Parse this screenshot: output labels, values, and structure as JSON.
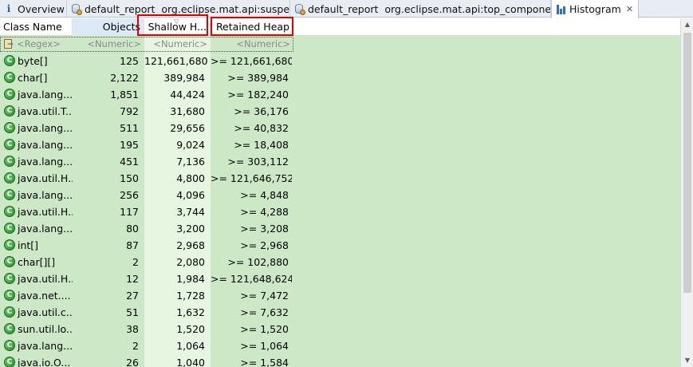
{
  "tabs": [
    {
      "label": "Overview",
      "icon": "info-icon",
      "active": false
    },
    {
      "label": "default_report  org.eclipse.mat.api:suspects",
      "icon": "report-icon",
      "active": false
    },
    {
      "label": "default_report  org.eclipse.mat.api:top_components",
      "icon": "report-icon",
      "active": false
    },
    {
      "label": "Histogram",
      "icon": "histogram-icon",
      "active": true,
      "close": "✕"
    }
  ],
  "columns": {
    "class_name": "Class Name",
    "objects": "Objects",
    "shallow": "Shallow H...",
    "retained": "Retained Heap"
  },
  "filters": {
    "class_name": "<Regex>",
    "objects": "<Numeric>",
    "shallow": "<Numeric>",
    "retained": "<Numeric>"
  },
  "class_icon_letter": "C",
  "rows": [
    {
      "name": "byte[]",
      "objects": "125",
      "shallow": "121,661,680",
      "retained": ">= 121,661,680"
    },
    {
      "name": "char[]",
      "objects": "2,122",
      "shallow": "389,984",
      "retained": ">= 389,984"
    },
    {
      "name": "java.lang....",
      "objects": "1,851",
      "shallow": "44,424",
      "retained": ">= 182,240"
    },
    {
      "name": "java.util.T...",
      "objects": "792",
      "shallow": "31,680",
      "retained": ">= 36,176"
    },
    {
      "name": "java.lang....",
      "objects": "511",
      "shallow": "29,656",
      "retained": ">= 40,832"
    },
    {
      "name": "java.lang....",
      "objects": "195",
      "shallow": "9,024",
      "retained": ">= 18,408"
    },
    {
      "name": "java.lang....",
      "objects": "451",
      "shallow": "7,136",
      "retained": ">= 303,112"
    },
    {
      "name": "java.util.H...",
      "objects": "150",
      "shallow": "4,800",
      "retained": ">= 121,646,752"
    },
    {
      "name": "java.lang....",
      "objects": "256",
      "shallow": "4,096",
      "retained": ">= 4,848"
    },
    {
      "name": "java.util.H...",
      "objects": "117",
      "shallow": "3,744",
      "retained": ">= 4,288"
    },
    {
      "name": "java.lang....",
      "objects": "80",
      "shallow": "3,200",
      "retained": ">= 3,208"
    },
    {
      "name": "int[]",
      "objects": "87",
      "shallow": "2,968",
      "retained": ">= 2,968"
    },
    {
      "name": "char[][]",
      "objects": "2",
      "shallow": "2,080",
      "retained": ">= 102,880"
    },
    {
      "name": "java.util.H...",
      "objects": "12",
      "shallow": "1,984",
      "retained": ">= 121,648,624"
    },
    {
      "name": "java.net....",
      "objects": "27",
      "shallow": "1,728",
      "retained": ">= 7,472"
    },
    {
      "name": "java.util.c...",
      "objects": "51",
      "shallow": "1,632",
      "retained": ">= 7,632"
    },
    {
      "name": "sun.util.lo...",
      "objects": "38",
      "shallow": "1,520",
      "retained": ">= 1,520"
    },
    {
      "name": "java.lang....",
      "objects": "2",
      "shallow": "1,064",
      "retained": ">= 1,064"
    },
    {
      "name": "java.io.O...",
      "objects": "26",
      "shallow": "1,040",
      "retained": ">= 1,584"
    }
  ],
  "colors": {
    "row_bg": "#cde8c7",
    "shallow_col_bg": "#e6f6e1",
    "highlight": "#e00000",
    "sorted_header": "#dceaf7"
  }
}
